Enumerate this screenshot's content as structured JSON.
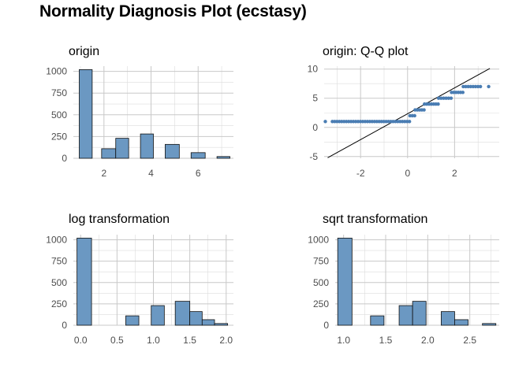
{
  "title": "Normality Diagnosis Plot (ecstasy)",
  "chart_data": [
    {
      "type": "bar",
      "subtitle": "origin",
      "xlim": [
        0.7,
        7.5
      ],
      "ylim": [
        0,
        1060
      ],
      "xticks": [
        2,
        4,
        6
      ],
      "xtick_labels": [
        "2",
        "4",
        "6"
      ],
      "yticks": [
        0,
        250,
        500,
        750,
        1000
      ],
      "ytick_labels": [
        "0",
        "250",
        "500",
        "750",
        "1000"
      ],
      "bins": [
        {
          "x0": 0.95,
          "x1": 1.5,
          "value": 1020
        },
        {
          "x0": 1.9,
          "x1": 2.5,
          "value": 110
        },
        {
          "x0": 2.5,
          "x1": 3.05,
          "value": 230
        },
        {
          "x0": 3.55,
          "x1": 4.1,
          "value": 280
        },
        {
          "x0": 4.6,
          "x1": 5.2,
          "value": 160
        },
        {
          "x0": 5.7,
          "x1": 6.3,
          "value": 65
        },
        {
          "x0": 6.8,
          "x1": 7.35,
          "value": 20
        }
      ]
    },
    {
      "type": "scatter",
      "subtitle": "origin: Q-Q plot",
      "xlim": [
        -3.55,
        3.9
      ],
      "ylim": [
        -5.3,
        10.5
      ],
      "xticks": [
        -2,
        0,
        2
      ],
      "xtick_labels": [
        "-2",
        "0",
        "2"
      ],
      "yticks": [
        -5,
        0,
        5,
        10
      ],
      "ytick_labels": [
        "-5",
        "0",
        "5",
        "10"
      ],
      "line": {
        "x": [
          -3.4,
          3.5
        ],
        "y": [
          -5.2,
          10.1
        ]
      },
      "segments": [
        {
          "x0": -3.5,
          "x1": -3.5,
          "y": 1
        },
        {
          "x0": -3.2,
          "x1": 0.08,
          "y": 1
        },
        {
          "x0": 0.1,
          "x1": 0.3,
          "y": 2
        },
        {
          "x0": 0.32,
          "x1": 0.7,
          "y": 3
        },
        {
          "x0": 0.72,
          "x1": 1.3,
          "y": 4
        },
        {
          "x0": 1.32,
          "x1": 1.85,
          "y": 5
        },
        {
          "x0": 1.87,
          "x1": 2.35,
          "y": 6
        },
        {
          "x0": 2.37,
          "x1": 3.1,
          "y": 7
        },
        {
          "x0": 3.45,
          "x1": 3.45,
          "y": 7
        }
      ]
    },
    {
      "type": "bar",
      "subtitle": "log transformation",
      "xlim": [
        -0.1,
        2.1
      ],
      "ylim": [
        0,
        1060
      ],
      "xticks": [
        0,
        0.5,
        1.0,
        1.5,
        2.0
      ],
      "xtick_labels": [
        "0.0",
        "0.5",
        "1.0",
        "1.5",
        "2.0"
      ],
      "yticks": [
        0,
        250,
        500,
        750,
        1000
      ],
      "ytick_labels": [
        "0",
        "250",
        "500",
        "750",
        "1000"
      ],
      "bins": [
        {
          "x0": -0.05,
          "x1": 0.15,
          "value": 1020
        },
        {
          "x0": 0.62,
          "x1": 0.8,
          "value": 110
        },
        {
          "x0": 0.97,
          "x1": 1.15,
          "value": 230
        },
        {
          "x0": 1.3,
          "x1": 1.5,
          "value": 280
        },
        {
          "x0": 1.5,
          "x1": 1.67,
          "value": 160
        },
        {
          "x0": 1.67,
          "x1": 1.84,
          "value": 65
        },
        {
          "x0": 1.84,
          "x1": 2.02,
          "value": 20
        }
      ]
    },
    {
      "type": "bar",
      "subtitle": "sqrt transformation",
      "xlim": [
        0.9,
        2.85
      ],
      "ylim": [
        0,
        1060
      ],
      "xticks": [
        1.0,
        1.5,
        2.0,
        2.5
      ],
      "xtick_labels": [
        "1.0",
        "1.5",
        "2.0",
        "2.5"
      ],
      "yticks": [
        0,
        250,
        500,
        750,
        1000
      ],
      "ytick_labels": [
        "0",
        "250",
        "500",
        "750",
        "1000"
      ],
      "bins": [
        {
          "x0": 0.93,
          "x1": 1.1,
          "value": 1020
        },
        {
          "x0": 1.32,
          "x1": 1.48,
          "value": 110
        },
        {
          "x0": 1.66,
          "x1": 1.82,
          "value": 230
        },
        {
          "x0": 1.82,
          "x1": 1.98,
          "value": 280
        },
        {
          "x0": 2.16,
          "x1": 2.32,
          "value": 160
        },
        {
          "x0": 2.32,
          "x1": 2.48,
          "value": 65
        },
        {
          "x0": 2.65,
          "x1": 2.81,
          "value": 20
        }
      ]
    }
  ]
}
